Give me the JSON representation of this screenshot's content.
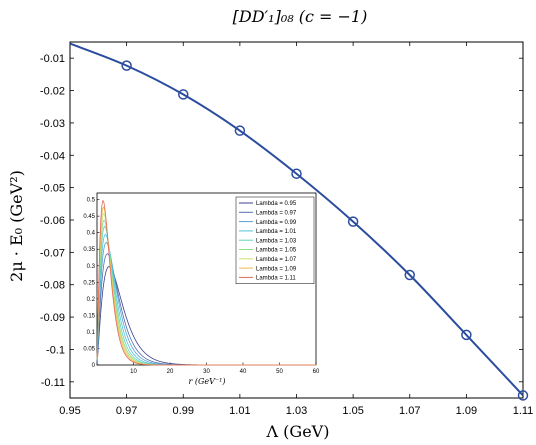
{
  "chart_data": [
    {
      "type": "line",
      "title": "[DD′₁]₀₈ (c = −1)",
      "xlabel": "Λ (GeV)",
      "ylabel": "2μ · E₀ (GeV²)",
      "xlim": [
        0.95,
        1.11
      ],
      "ylim": [
        -0.115,
        -0.005
      ],
      "xticks": [
        "0.95",
        "0.97",
        "0.99",
        "1.01",
        "1.03",
        "1.05",
        "1.07",
        "1.09",
        "1.11"
      ],
      "yticks": [
        "-0.01",
        "-0.02",
        "-0.03",
        "-0.04",
        "-0.05",
        "-0.06",
        "-0.07",
        "-0.08",
        "-0.09",
        "-0.1",
        "-0.11"
      ],
      "grid": false,
      "series": [
        {
          "x": [
            0.95,
            0.97,
            0.99,
            1.01,
            1.03,
            1.05,
            1.07,
            1.09,
            1.11
          ],
          "values": [
            -0.0055,
            -0.0123,
            -0.0212,
            -0.0324,
            -0.0457,
            -0.0605,
            -0.077,
            -0.0955,
            -0.1142
          ],
          "color": "#2c4c9e"
        }
      ]
    },
    {
      "type": "line",
      "xlabel": "r (GeV⁻¹)",
      "ylabel": "",
      "xlim": [
        0,
        60
      ],
      "ylim": [
        0,
        0.52
      ],
      "xticks": [
        "10",
        "20",
        "30",
        "40",
        "50",
        "60"
      ],
      "yticks": [
        "0",
        "0.05",
        "0.1",
        "0.15",
        "0.2",
        "0.25",
        "0.3",
        "0.35",
        "0.4",
        "0.45",
        "0.5"
      ],
      "legend_position": "top-right",
      "series": [
        {
          "name": "Lambda = 0.95",
          "peak_r": 3.4,
          "peak": 0.31,
          "color": "#3b3f8c"
        },
        {
          "name": "Lambda = 0.97",
          "peak_r": 2.9,
          "peak": 0.35,
          "color": "#4f6fb0"
        },
        {
          "name": "Lambda = 0.99",
          "peak_r": 2.6,
          "peak": 0.385,
          "color": "#5a9fd4"
        },
        {
          "name": "Lambda = 1.01",
          "peak_r": 2.35,
          "peak": 0.41,
          "color": "#4fc3dc"
        },
        {
          "name": "Lambda = 1.03",
          "peak_r": 2.15,
          "peak": 0.435,
          "color": "#62d3b8"
        },
        {
          "name": "Lambda = 1.05",
          "peak_r": 2.0,
          "peak": 0.455,
          "color": "#8fdc8a"
        },
        {
          "name": "Lambda = 1.07",
          "peak_r": 1.9,
          "peak": 0.475,
          "color": "#cde070"
        },
        {
          "name": "Lambda = 1.09",
          "peak_r": 1.8,
          "peak": 0.495,
          "color": "#f0b94a"
        },
        {
          "name": "Lambda = 1.11",
          "peak_r": 1.7,
          "peak": 0.515,
          "color": "#e06a5a"
        }
      ]
    }
  ]
}
